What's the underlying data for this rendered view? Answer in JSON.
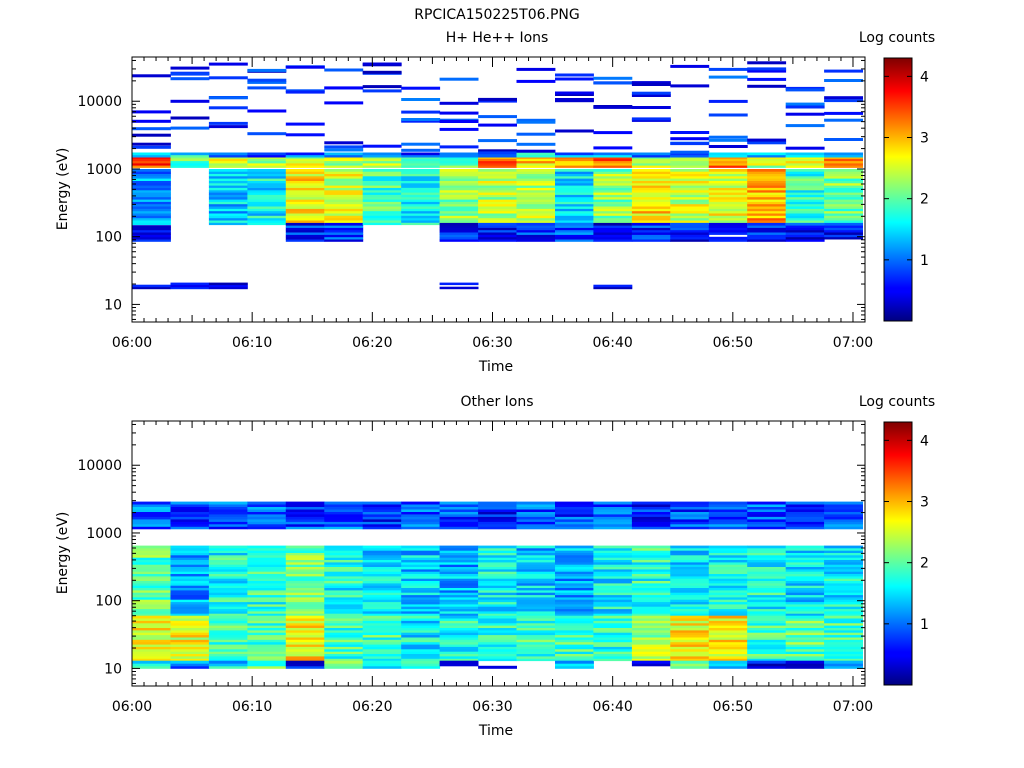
{
  "figure_title": "RPCICA150225T06.PNG",
  "chart_data": [
    {
      "type": "heatmap",
      "title": "H+ He++ Ions",
      "xlabel": "Time",
      "ylabel": "Energy (eV)",
      "colorbar_label": "Log counts",
      "x_tick_labels": [
        "06:00",
        "06:10",
        "06:20",
        "06:30",
        "06:40",
        "06:50",
        "07:00"
      ],
      "y_tick_labels": [
        "10",
        "100",
        "1000",
        "10000"
      ],
      "colorbar_tick_labels": [
        "1",
        "2",
        "3",
        "4"
      ],
      "x_range_minutes": [
        0,
        61
      ],
      "y_range_eV": [
        5.5,
        45000
      ],
      "log_y": true,
      "colorbar_range": [
        0,
        4.3
      ],
      "colormap": "jet",
      "time_columns_start_min": [
        0,
        3.2,
        6.4,
        9.6,
        12.8,
        16.0,
        19.2,
        22.4,
        25.6,
        28.8,
        32.0,
        35.2,
        38.4,
        41.6,
        44.8,
        48.0,
        51.2,
        54.4,
        57.6
      ],
      "time_column_width_min": 3.2,
      "band_profiles": [
        {
          "name": "main_1200",
          "from_eV": 1050,
          "to_eV": 1550,
          "log_counts": [
            3.6,
            2.0,
            2.6,
            2.4,
            2.5,
            2.3,
            2.4,
            2.2,
            2.0,
            3.3,
            2.8,
            3.1,
            3.4,
            2.5,
            2.2,
            3.2,
            2.4,
            2.8,
            3.0
          ]
        },
        {
          "name": "main_1500",
          "from_eV": 1500,
          "to_eV": 1750,
          "log_counts": [
            1.5,
            1.6,
            1.2,
            0.9,
            0.9,
            1.1,
            1.1,
            0.8,
            1.0,
            1.3,
            1.5,
            1.2,
            1.3,
            1.1,
            1.0,
            1.3,
            1.2,
            1.2,
            1.3
          ]
        },
        {
          "name": "mid_low",
          "from_eV": 150,
          "to_eV": 1000,
          "log_counts": [
            1.2,
            0.0,
            1.4,
            1.6,
            2.7,
            2.5,
            1.9,
            1.6,
            2.2,
            2.4,
            2.4,
            1.5,
            2.2,
            2.8,
            2.5,
            2.6,
            3.0,
            1.8,
            2.1
          ]
        },
        {
          "name": "lower",
          "from_eV": 85,
          "to_eV": 160,
          "log_counts": [
            0.4,
            0.0,
            0.0,
            0.0,
            0.7,
            0.8,
            0.0,
            0.0,
            0.6,
            0.6,
            0.7,
            0.8,
            0.5,
            0.7,
            0.6,
            0.5,
            0.6,
            0.6,
            0.5
          ]
        },
        {
          "name": "floor",
          "from_eV": 17,
          "to_eV": 21,
          "log_counts": [
            0.3,
            0.3,
            0.3,
            0,
            0,
            0,
            0,
            0,
            0.3,
            0,
            0,
            0,
            0.4,
            0,
            0,
            0,
            0,
            0,
            0
          ]
        }
      ]
    },
    {
      "type": "heatmap",
      "title": "Other Ions",
      "xlabel": "Time",
      "ylabel": "Energy (eV)",
      "colorbar_label": "Log counts",
      "x_tick_labels": [
        "06:00",
        "06:10",
        "06:20",
        "06:30",
        "06:40",
        "06:50",
        "07:00"
      ],
      "y_tick_labels": [
        "10",
        "100",
        "1000",
        "10000"
      ],
      "colorbar_tick_labels": [
        "1",
        "2",
        "3",
        "4"
      ],
      "x_range_minutes": [
        0,
        61
      ],
      "y_range_eV": [
        5.5,
        45000
      ],
      "log_y": true,
      "colorbar_range": [
        0,
        4.3
      ],
      "colormap": "jet",
      "time_columns_start_min": [
        0,
        3.2,
        6.4,
        9.6,
        12.8,
        16.0,
        19.2,
        22.4,
        25.6,
        28.8,
        32.0,
        35.2,
        38.4,
        41.6,
        44.8,
        48.0,
        51.2,
        54.4,
        57.6
      ],
      "time_column_width_min": 3.2,
      "band_profiles": [
        {
          "name": "upper",
          "from_eV": 1150,
          "to_eV": 2900,
          "log_counts": [
            1.0,
            0.8,
            0.9,
            0.9,
            0.8,
            0.9,
            0.7,
            0.9,
            0.8,
            0.7,
            0.9,
            0.8,
            0.9,
            0.7,
            0.8,
            0.9,
            0.9,
            0.8,
            0.9
          ]
        },
        {
          "name": "mid",
          "from_eV": 60,
          "to_eV": 650,
          "log_counts": [
            2.0,
            1.2,
            1.7,
            1.8,
            2.1,
            1.7,
            1.5,
            1.4,
            1.3,
            1.6,
            1.4,
            1.3,
            1.6,
            1.8,
            1.5,
            1.6,
            1.7,
            1.5,
            1.6
          ]
        },
        {
          "name": "low",
          "from_eV": 13,
          "to_eV": 60,
          "log_counts": [
            2.6,
            2.6,
            1.9,
            1.9,
            2.8,
            1.9,
            1.9,
            1.6,
            1.7,
            1.8,
            1.9,
            1.9,
            1.8,
            2.3,
            2.7,
            2.8,
            1.9,
            2.0,
            1.9
          ]
        },
        {
          "name": "floor",
          "from_eV": 10,
          "to_eV": 13,
          "log_counts": [
            1.7,
            1.1,
            1.5,
            2.0,
            0.5,
            2.0,
            1.5,
            1.6,
            0.2,
            0.2,
            0,
            1.3,
            0,
            0.4,
            2.0,
            1.5,
            0.4,
            0.1,
            1.5
          ]
        }
      ]
    }
  ]
}
